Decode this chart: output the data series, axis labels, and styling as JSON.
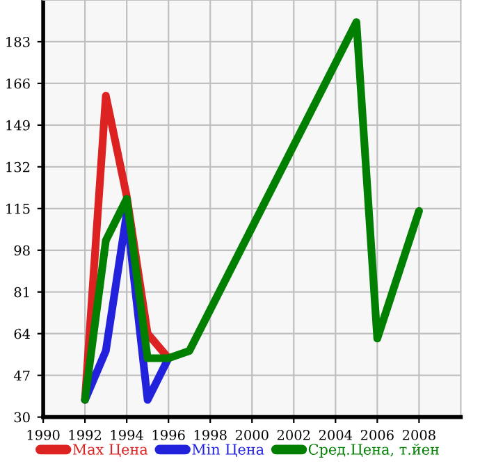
{
  "chart_data": {
    "type": "line",
    "x": [
      1992,
      1993,
      1994,
      1995,
      1996,
      1997,
      1998,
      1999,
      2000,
      2001,
      2002,
      2003,
      2004,
      2005,
      2006,
      2007,
      2008
    ],
    "series": [
      {
        "name": "Max Цена",
        "color": "#dd2222",
        "values": [
          37,
          161,
          120,
          64,
          54,
          null,
          null,
          null,
          null,
          null,
          null,
          null,
          null,
          null,
          null,
          null,
          null
        ]
      },
      {
        "name": "Min Цена",
        "color": "#2222dd",
        "values": [
          37,
          57,
          113,
          37,
          54,
          null,
          null,
          null,
          null,
          null,
          null,
          null,
          null,
          null,
          null,
          null,
          null
        ]
      },
      {
        "name": "Сред.Цена, т.йен",
        "color": "#007f00",
        "values": [
          37,
          102,
          119,
          54,
          54,
          57,
          null,
          null,
          null,
          null,
          null,
          null,
          null,
          191,
          62,
          null,
          114
        ]
      }
    ],
    "xlim": [
      1990,
      2010
    ],
    "xticks": [
      1990,
      1992,
      1994,
      1996,
      1998,
      2000,
      2002,
      2004,
      2006,
      2008
    ],
    "ylim": [
      30,
      200
    ],
    "yticks": [
      30,
      47,
      64,
      81,
      98,
      115,
      132,
      149,
      166,
      183
    ],
    "grid": true,
    "legend": "bottom",
    "marker": "none",
    "line_style": "solid"
  }
}
